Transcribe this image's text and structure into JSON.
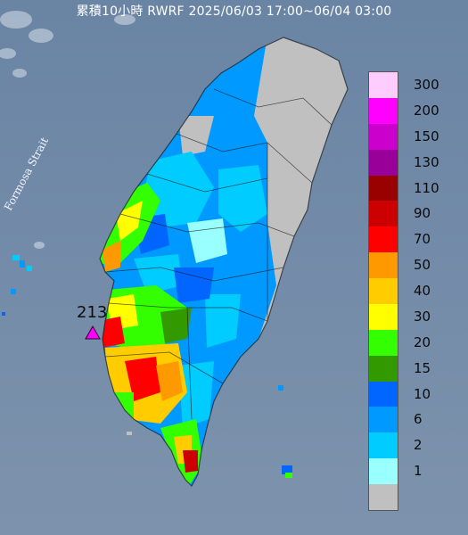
{
  "header": {
    "title": "累積10小時 RWRF 2025/06/03 17:00~06/04 03:00"
  },
  "map_labels": {
    "strait": "Formosa Strait",
    "max_value": "213"
  },
  "legend": {
    "items": [
      {
        "label": "300",
        "color": "#ffccff"
      },
      {
        "label": "200",
        "color": "#ff00ff"
      },
      {
        "label": "150",
        "color": "#cc00cc"
      },
      {
        "label": "130",
        "color": "#990099"
      },
      {
        "label": "110",
        "color": "#990000"
      },
      {
        "label": "90",
        "color": "#cc0000"
      },
      {
        "label": "70",
        "color": "#ff0000"
      },
      {
        "label": "50",
        "color": "#ff9900"
      },
      {
        "label": "40",
        "color": "#ffcc00"
      },
      {
        "label": "30",
        "color": "#ffff00"
      },
      {
        "label": "20",
        "color": "#33ff00"
      },
      {
        "label": "15",
        "color": "#339900"
      },
      {
        "label": "10",
        "color": "#0066ff"
      },
      {
        "label": "6",
        "color": "#0099ff"
      },
      {
        "label": "2",
        "color": "#00ccff"
      },
      {
        "label": "1",
        "color": "#99ffff"
      },
      {
        "label": "",
        "color": "#c0c0c0"
      }
    ]
  }
}
